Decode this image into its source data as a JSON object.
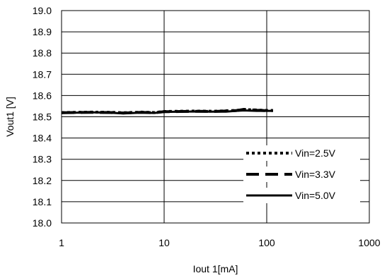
{
  "chart_data": {
    "type": "line",
    "xlabel": "Iout 1[mA]",
    "ylabel": "Vout1 [V]",
    "x_scale": "log",
    "xlim": [
      1,
      1000
    ],
    "ylim": [
      18.0,
      19.0
    ],
    "x_ticks": [
      "1",
      "10",
      "100",
      "1000"
    ],
    "y_ticks": [
      "19.0",
      "18.9",
      "18.8",
      "18.7",
      "18.6",
      "18.5",
      "18.4",
      "18.3",
      "18.2",
      "18.1",
      "18.0"
    ],
    "grid": true,
    "legend_position": "bottom-right",
    "series": [
      {
        "name": "Vin=2.5V",
        "style": "dotted",
        "x": [
          1,
          2,
          3,
          4,
          6,
          8,
          10,
          20,
          30,
          50,
          60,
          80,
          100,
          115
        ],
        "y": [
          18.52,
          18.522,
          18.521,
          18.519,
          18.522,
          18.52,
          18.525,
          18.527,
          18.526,
          18.53,
          18.534,
          18.532,
          18.53,
          18.53
        ]
      },
      {
        "name": "Vin=3.3V",
        "style": "dashed",
        "x": [
          1,
          2,
          3,
          4,
          6,
          8,
          10,
          20,
          30,
          50,
          60,
          80,
          100,
          115
        ],
        "y": [
          18.519,
          18.521,
          18.52,
          18.518,
          18.521,
          18.519,
          18.524,
          18.526,
          18.525,
          18.529,
          18.535,
          18.531,
          18.529,
          18.529
        ]
      },
      {
        "name": "Vin=5.0V",
        "style": "solid",
        "x": [
          1,
          2,
          3,
          4,
          5,
          6,
          8,
          10,
          20,
          30,
          40,
          50,
          60,
          80,
          100,
          115
        ],
        "y": [
          18.518,
          18.521,
          18.519,
          18.516,
          18.518,
          18.52,
          18.518,
          18.523,
          18.525,
          18.524,
          18.524,
          18.528,
          18.53,
          18.528,
          18.528,
          18.528
        ]
      }
    ]
  }
}
